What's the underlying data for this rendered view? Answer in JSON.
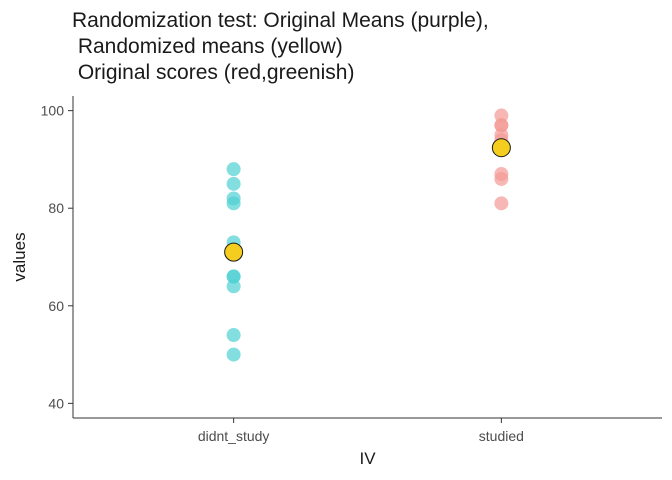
{
  "chart_data": {
    "type": "scatter",
    "title_lines": [
      "Randomization test: Original Means (purple),",
      " Randomized means (yellow)",
      " Original scores (red,greenish)"
    ],
    "xlabel": "IV",
    "ylabel": "values",
    "categories": [
      "didnt_study",
      "studied"
    ],
    "ylim": [
      37,
      103
    ],
    "yticks": [
      40,
      60,
      80,
      100
    ],
    "grid": false,
    "legend": "none",
    "series": [
      {
        "category": "didnt_study",
        "color": "#4fd0d3",
        "values": [
          88,
          85,
          82,
          81,
          73,
          71,
          66,
          66,
          64,
          54,
          50
        ]
      },
      {
        "category": "studied",
        "color": "#f49a96",
        "values": [
          99,
          97,
          97,
          95,
          94,
          92,
          87,
          86,
          81
        ]
      }
    ],
    "means": [
      {
        "category": "didnt_study",
        "value": 71,
        "fill": "#f5cd1f"
      },
      {
        "category": "studied",
        "value": 92.4,
        "fill": "#f5cd1f"
      }
    ]
  }
}
